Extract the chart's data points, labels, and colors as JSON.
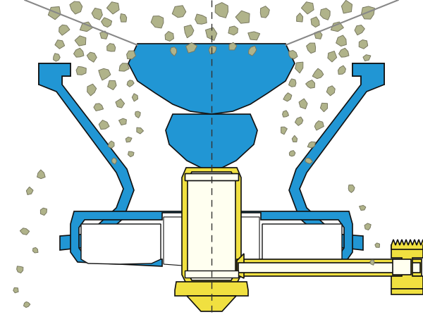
{
  "blue": "#2196d4",
  "yellow": "#f0e040",
  "yellow2": "#e8d820",
  "cream": "#fffff0",
  "cream2": "#f8f8e0",
  "stone_color": "#b0b38a",
  "stone_border": "#787860",
  "white": "#ffffff",
  "black": "#111111",
  "bg_color": "#ffffff",
  "fig_width": 6.0,
  "fig_height": 4.5,
  "dpi": 100
}
